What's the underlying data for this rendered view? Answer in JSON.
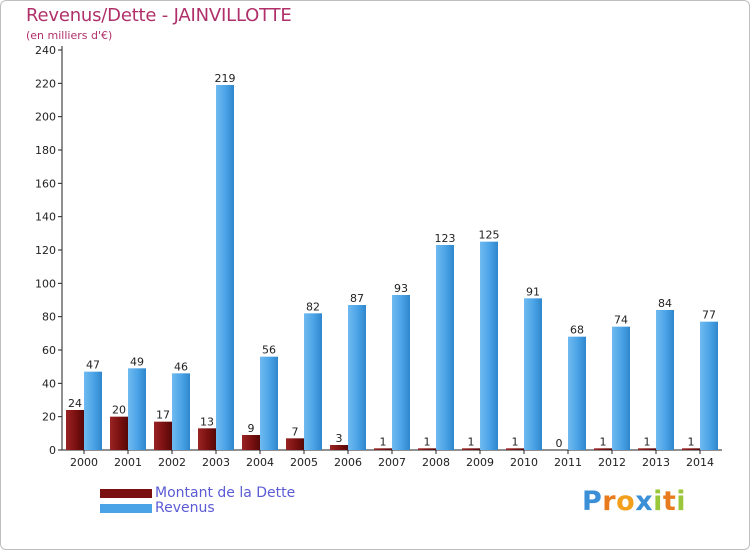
{
  "chart_data": {
    "type": "bar",
    "title": "Revenus/Dette - JAINVILLOTTE",
    "subtitle": "(en milliers d'€)",
    "categories": [
      "2000",
      "2001",
      "2002",
      "2003",
      "2004",
      "2005",
      "2006",
      "2007",
      "2008",
      "2009",
      "2010",
      "2011",
      "2012",
      "2013",
      "2014"
    ],
    "series": [
      {
        "name": "Montant de la Dette",
        "color": "#7a1010",
        "values": [
          24,
          20,
          17,
          13,
          9,
          7,
          3,
          1,
          1,
          1,
          1,
          0,
          1,
          1,
          1
        ]
      },
      {
        "name": "Revenus",
        "color": "#4aa3e6",
        "values": [
          47,
          49,
          46,
          219,
          56,
          82,
          87,
          93,
          123,
          125,
          91,
          68,
          74,
          84,
          77
        ]
      }
    ],
    "ylim": [
      0,
      240
    ],
    "yticks": [
      0,
      20,
      40,
      60,
      80,
      100,
      120,
      140,
      160,
      180,
      200,
      220,
      240
    ],
    "grid": false,
    "legend_position": "bottom-left"
  },
  "logo": {
    "letters": [
      "P",
      "r",
      "o",
      "x",
      "i",
      "t",
      "i"
    ],
    "colors": [
      "#3a8fd6",
      "#e87b1e",
      "#f2a01c",
      "#3a8fd6",
      "#9ac63a",
      "#e87b1e",
      "#9ac63a"
    ]
  }
}
